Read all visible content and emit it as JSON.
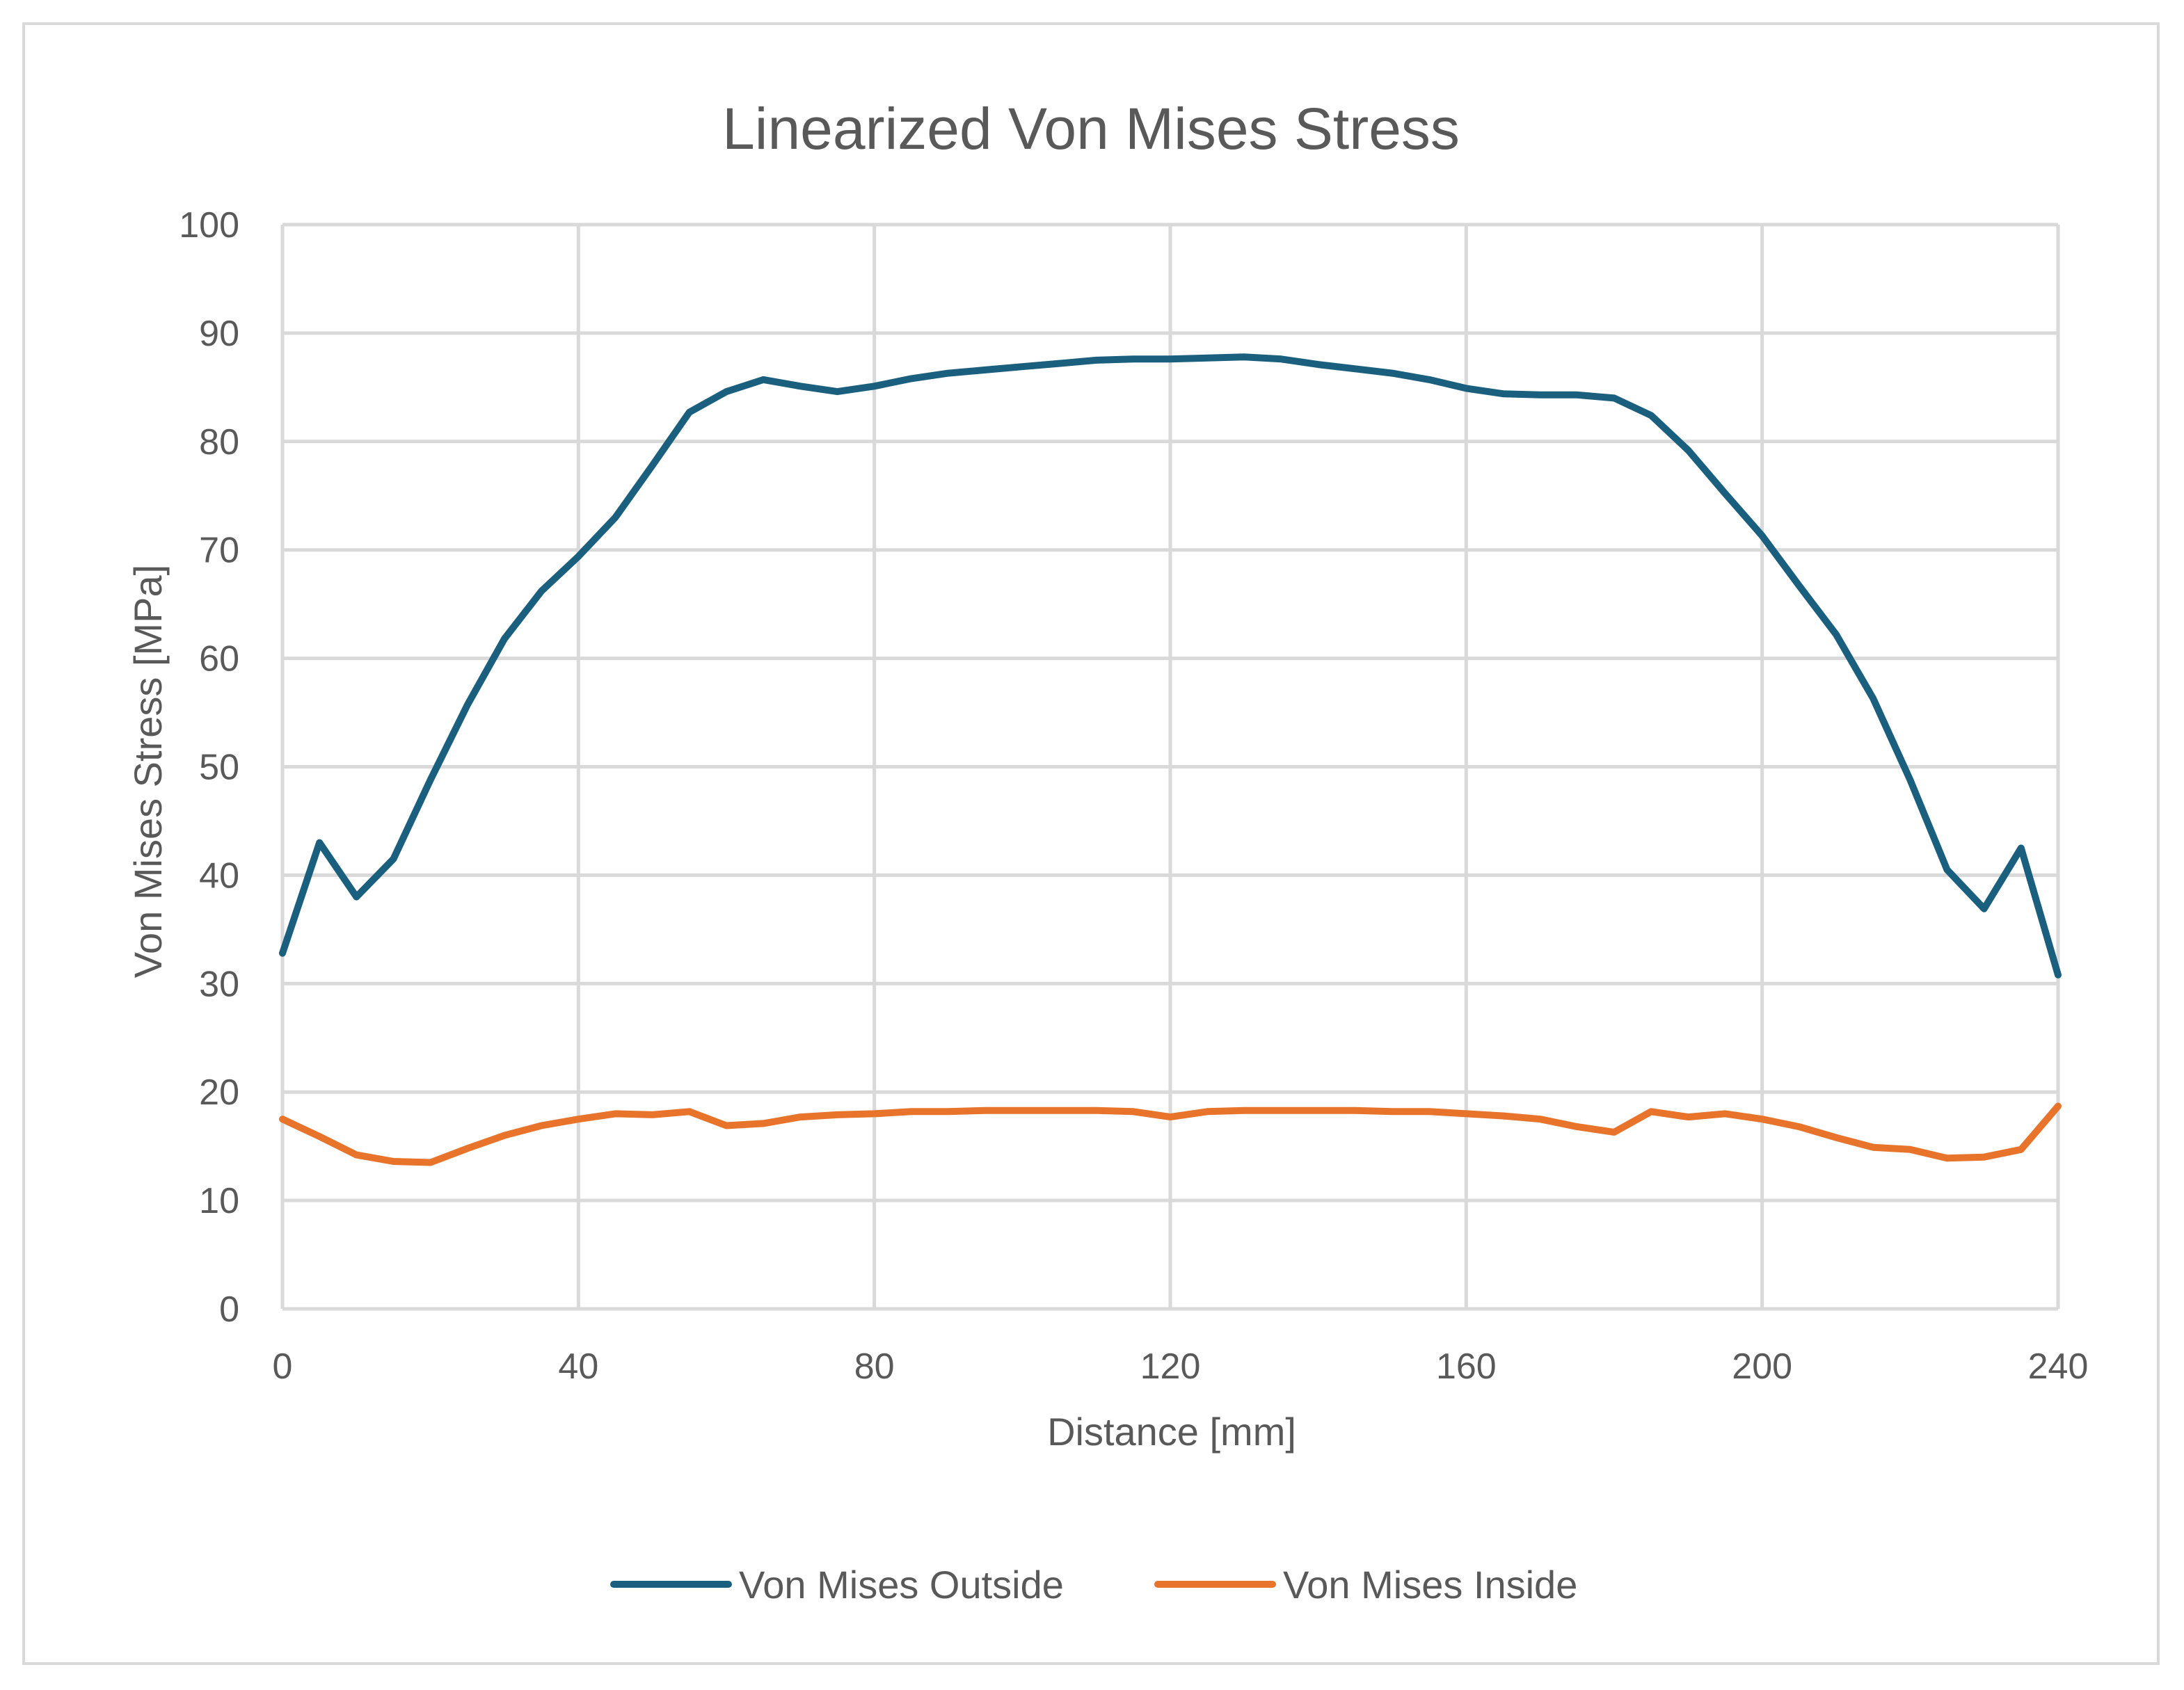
{
  "chart_data": {
    "type": "line",
    "title": "Linearized Von Mises Stress",
    "xlabel": "Distance [mm]",
    "ylabel": "Von Mises Stress [MPa]",
    "xlim": [
      0,
      240
    ],
    "ylim": [
      0,
      100
    ],
    "x_ticks": [
      0,
      40,
      80,
      120,
      160,
      200,
      240
    ],
    "y_ticks": [
      0,
      10,
      20,
      30,
      40,
      50,
      60,
      70,
      80,
      90,
      100
    ],
    "grid": true,
    "legend_position": "bottom",
    "x": [
      0,
      5,
      10,
      15,
      20,
      25,
      30,
      35,
      40,
      45,
      50,
      55,
      60,
      65,
      70,
      75,
      80,
      85,
      90,
      95,
      100,
      105,
      110,
      115,
      120,
      125,
      130,
      135,
      140,
      145,
      150,
      155,
      160,
      165,
      170,
      175,
      180,
      185,
      190,
      195,
      200,
      205,
      210,
      215,
      220,
      225,
      230,
      235,
      240
    ],
    "series": [
      {
        "name": "Von Mises Outside",
        "color": "#1b5f7f",
        "values": [
          32.8,
          43.0,
          38.0,
          41.5,
          48.8,
          55.7,
          61.8,
          66.2,
          69.4,
          73.0,
          77.8,
          82.7,
          84.6,
          85.7,
          85.1,
          84.6,
          85.1,
          85.8,
          86.3,
          86.6,
          86.9,
          87.2,
          87.5,
          87.6,
          87.6,
          87.7,
          87.8,
          87.6,
          87.1,
          86.7,
          86.3,
          85.7,
          84.9,
          84.4,
          84.3,
          84.3,
          84.0,
          82.4,
          79.2,
          75.2,
          71.3,
          66.7,
          62.2,
          56.3,
          48.8,
          40.5,
          36.9,
          42.5,
          30.8
        ]
      },
      {
        "name": "Von Mises Inside",
        "color": "#e8732a",
        "values": [
          17.5,
          15.9,
          14.2,
          13.6,
          13.5,
          14.8,
          16.0,
          16.9,
          17.5,
          18.0,
          17.9,
          18.2,
          16.9,
          17.1,
          17.7,
          17.9,
          18.0,
          18.2,
          18.2,
          18.3,
          18.3,
          18.3,
          18.3,
          18.2,
          17.7,
          18.2,
          18.3,
          18.3,
          18.3,
          18.3,
          18.2,
          18.2,
          18.0,
          17.8,
          17.5,
          16.8,
          16.3,
          18.2,
          17.7,
          18.0,
          17.5,
          16.8,
          15.8,
          14.9,
          14.7,
          13.9,
          14.0,
          14.7,
          18.7
        ]
      }
    ]
  }
}
